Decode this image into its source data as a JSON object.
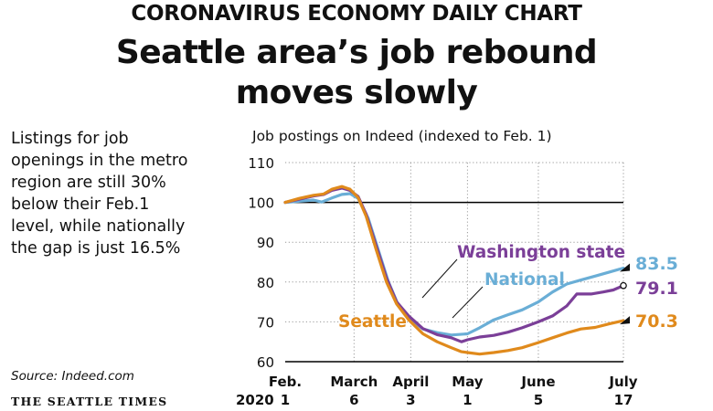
{
  "kicker": "CORONAVIRUS ECONOMY DAILY CHART",
  "headline": [
    "Seattle area’s job rebound",
    "moves slowly"
  ],
  "summary": [
    "Listings for job",
    "openings in the metro",
    "region are still 30%",
    "below their Feb.1",
    "level, while nationally",
    "the gap is just 16.5%"
  ],
  "source": "Source: Indeed.com",
  "brand": "THE SEATTLE TIMES",
  "colors": {
    "national": "#6aaed6",
    "washington": "#7b3f98",
    "seattle": "#e08a1c",
    "axis": "#000000",
    "grid": "#999999"
  },
  "chart_data": {
    "type": "line",
    "title": "Job postings on Indeed (indexed to Feb. 1)",
    "year_label": "2020",
    "ylim": [
      60,
      110
    ],
    "y_ticks": [
      60,
      70,
      80,
      90,
      100,
      110
    ],
    "baseline": 100,
    "x_ticks": [
      {
        "line1": "Feb.",
        "line2": "1",
        "date": "2020-02-01"
      },
      {
        "line1": "March",
        "line2": "6",
        "date": "2020-03-06"
      },
      {
        "line1": "April",
        "line2": "3",
        "date": "2020-04-03"
      },
      {
        "line1": "May",
        "line2": "1",
        "date": "2020-05-01"
      },
      {
        "line1": "June",
        "line2": "5",
        "date": "2020-06-05"
      },
      {
        "line1": "July",
        "line2": "17",
        "date": "2020-07-17"
      }
    ],
    "series": [
      {
        "name": "National",
        "key": "national",
        "end_label": "83.5",
        "points": [
          [
            "2020-02-01",
            100
          ],
          [
            "2020-02-08",
            100.3
          ],
          [
            "2020-02-15",
            100.6
          ],
          [
            "2020-02-19",
            100.1
          ],
          [
            "2020-02-24",
            101.1
          ],
          [
            "2020-02-29",
            102
          ],
          [
            "2020-03-04",
            102.2
          ],
          [
            "2020-03-08",
            101
          ],
          [
            "2020-03-13",
            96
          ],
          [
            "2020-03-18",
            88
          ],
          [
            "2020-03-23",
            80
          ],
          [
            "2020-03-28",
            74
          ],
          [
            "2020-04-02",
            71
          ],
          [
            "2020-04-09",
            68.2
          ],
          [
            "2020-04-16",
            67.3
          ],
          [
            "2020-04-23",
            66.7
          ],
          [
            "2020-05-01",
            67
          ],
          [
            "2020-05-07",
            68.5
          ],
          [
            "2020-05-14",
            70.5
          ],
          [
            "2020-05-21",
            71.8
          ],
          [
            "2020-05-28",
            73
          ],
          [
            "2020-06-05",
            75
          ],
          [
            "2020-06-12",
            77.5
          ],
          [
            "2020-06-19",
            79.5
          ],
          [
            "2020-06-26",
            80.5
          ],
          [
            "2020-07-03",
            81.5
          ],
          [
            "2020-07-10",
            82.5
          ],
          [
            "2020-07-17",
            83.5
          ]
        ]
      },
      {
        "name": "Washington state",
        "key": "washington",
        "end_label": "79.1",
        "points": [
          [
            "2020-02-01",
            100
          ],
          [
            "2020-02-08",
            100.8
          ],
          [
            "2020-02-15",
            101.6
          ],
          [
            "2020-02-20",
            102
          ],
          [
            "2020-02-24",
            103
          ],
          [
            "2020-02-29",
            103.6
          ],
          [
            "2020-03-04",
            103
          ],
          [
            "2020-03-08",
            101.5
          ],
          [
            "2020-03-12",
            97
          ],
          [
            "2020-03-17",
            89
          ],
          [
            "2020-03-22",
            81
          ],
          [
            "2020-03-27",
            75
          ],
          [
            "2020-04-02",
            71.5
          ],
          [
            "2020-04-09",
            68.3
          ],
          [
            "2020-04-16",
            66.8
          ],
          [
            "2020-04-23",
            66
          ],
          [
            "2020-04-28",
            65
          ],
          [
            "2020-05-01",
            65.5
          ],
          [
            "2020-05-07",
            66.2
          ],
          [
            "2020-05-14",
            66.6
          ],
          [
            "2020-05-21",
            67.4
          ],
          [
            "2020-05-28",
            68.5
          ],
          [
            "2020-06-05",
            70
          ],
          [
            "2020-06-12",
            71.5
          ],
          [
            "2020-06-19",
            74
          ],
          [
            "2020-06-24",
            77
          ],
          [
            "2020-07-01",
            77
          ],
          [
            "2020-07-07",
            77.5
          ],
          [
            "2020-07-12",
            78
          ],
          [
            "2020-07-17",
            79.1
          ]
        ]
      },
      {
        "name": "Seattle",
        "key": "seattle",
        "end_label": "70.3",
        "points": [
          [
            "2020-02-01",
            100
          ],
          [
            "2020-02-08",
            101
          ],
          [
            "2020-02-15",
            101.8
          ],
          [
            "2020-02-20",
            102.1
          ],
          [
            "2020-02-24",
            103.3
          ],
          [
            "2020-02-29",
            104
          ],
          [
            "2020-03-04",
            103.3
          ],
          [
            "2020-03-08",
            101.2
          ],
          [
            "2020-03-12",
            96.5
          ],
          [
            "2020-03-17",
            88
          ],
          [
            "2020-03-22",
            80
          ],
          [
            "2020-03-27",
            74.5
          ],
          [
            "2020-04-02",
            70.5
          ],
          [
            "2020-04-09",
            67
          ],
          [
            "2020-04-16",
            65
          ],
          [
            "2020-04-23",
            63.5
          ],
          [
            "2020-04-28",
            62.5
          ],
          [
            "2020-05-01",
            62.3
          ],
          [
            "2020-05-07",
            61.9
          ],
          [
            "2020-05-14",
            62.3
          ],
          [
            "2020-05-21",
            62.8
          ],
          [
            "2020-05-28",
            63.5
          ],
          [
            "2020-06-05",
            64.8
          ],
          [
            "2020-06-12",
            66
          ],
          [
            "2020-06-19",
            67.2
          ],
          [
            "2020-06-26",
            68.2
          ],
          [
            "2020-07-03",
            68.6
          ],
          [
            "2020-07-10",
            69.5
          ],
          [
            "2020-07-17",
            70.3
          ]
        ]
      }
    ],
    "annotations": [
      "Washington state",
      "National",
      "Seattle"
    ]
  }
}
